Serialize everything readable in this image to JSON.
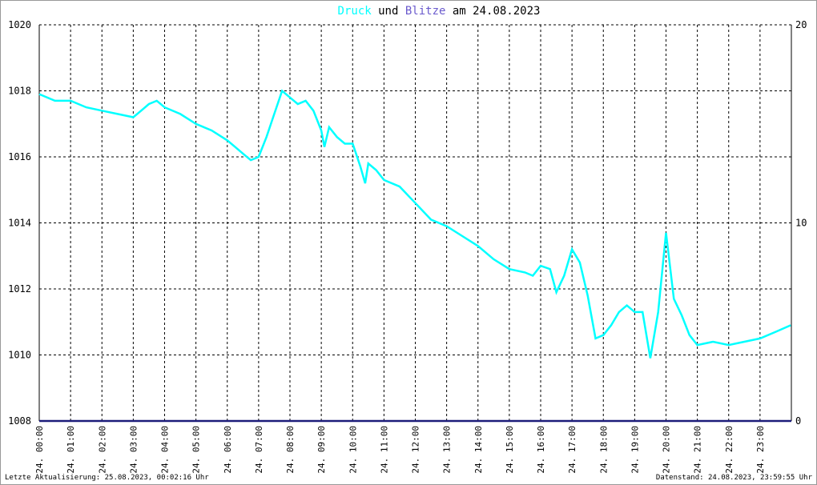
{
  "chart_data": {
    "type": "line",
    "title_connector": "und",
    "title_suffix": "am 24.08.2023",
    "footer_left": "Letzte Aktualisierung: 25.08.2023, 00:02:16 Uhr",
    "footer_right": "Datenstand: 24.08.2023, 23:59:55 Uhr",
    "xlim": [
      0,
      24
    ],
    "xticks": [
      {
        "value": 0,
        "label": "24. 00:00"
      },
      {
        "value": 1,
        "label": "24. 01:00"
      },
      {
        "value": 2,
        "label": "24. 02:00"
      },
      {
        "value": 3,
        "label": "24. 03:00"
      },
      {
        "value": 4,
        "label": "24. 04:00"
      },
      {
        "value": 5,
        "label": "24. 05:00"
      },
      {
        "value": 6,
        "label": "24. 06:00"
      },
      {
        "value": 7,
        "label": "24. 07:00"
      },
      {
        "value": 8,
        "label": "24. 08:00"
      },
      {
        "value": 9,
        "label": "24. 09:00"
      },
      {
        "value": 10,
        "label": "24. 10:00"
      },
      {
        "value": 11,
        "label": "24. 11:00"
      },
      {
        "value": 12,
        "label": "24. 12:00"
      },
      {
        "value": 13,
        "label": "24. 13:00"
      },
      {
        "value": 14,
        "label": "24. 14:00"
      },
      {
        "value": 15,
        "label": "24. 15:00"
      },
      {
        "value": 16,
        "label": "24. 16:00"
      },
      {
        "value": 17,
        "label": "24. 17:00"
      },
      {
        "value": 18,
        "label": "24. 18:00"
      },
      {
        "value": 19,
        "label": "24. 19:00"
      },
      {
        "value": 20,
        "label": "24. 20:00"
      },
      {
        "value": 21,
        "label": "24. 21:00"
      },
      {
        "value": 22,
        "label": "24. 22:00"
      },
      {
        "value": 23,
        "label": "24. 23:00"
      }
    ],
    "ylim": [
      1008,
      1020
    ],
    "yticks": [
      1008,
      1010,
      1012,
      1014,
      1016,
      1018,
      1020
    ],
    "y2lim": [
      0,
      20
    ],
    "y2ticks": [
      0,
      10,
      20
    ],
    "grid": true,
    "series": [
      {
        "name": "Druck",
        "color": "#00ffff",
        "x": [
          0,
          0.5,
          1,
          1.5,
          2,
          2.5,
          3,
          3.25,
          3.5,
          3.75,
          4,
          4.5,
          5,
          5.5,
          6,
          6.25,
          6.5,
          6.75,
          7,
          7.25,
          7.5,
          7.75,
          8,
          8.25,
          8.5,
          8.75,
          9,
          9.1,
          9.25,
          9.5,
          9.75,
          10,
          10.25,
          10.4,
          10.5,
          10.75,
          11,
          11.5,
          12,
          12.5,
          13,
          13.5,
          14,
          14.5,
          15,
          15.5,
          15.75,
          16,
          16.3,
          16.5,
          16.75,
          17,
          17.25,
          17.5,
          17.75,
          18,
          18.25,
          18.5,
          18.75,
          19,
          19.25,
          19.5,
          19.75,
          20,
          20.25,
          20.5,
          20.75,
          21,
          21.5,
          22,
          22.5,
          23,
          23.5,
          23.98
        ],
        "values": [
          1017.9,
          1017.7,
          1017.7,
          1017.5,
          1017.4,
          1017.3,
          1017.2,
          1017.4,
          1017.6,
          1017.7,
          1017.5,
          1017.3,
          1017.0,
          1016.8,
          1016.5,
          1016.3,
          1016.1,
          1015.9,
          1016.0,
          1016.6,
          1017.3,
          1018.0,
          1017.8,
          1017.6,
          1017.7,
          1017.4,
          1016.8,
          1016.3,
          1016.9,
          1016.6,
          1016.4,
          1016.4,
          1015.7,
          1015.2,
          1015.8,
          1015.6,
          1015.3,
          1015.1,
          1014.6,
          1014.1,
          1013.9,
          1013.6,
          1013.3,
          1012.9,
          1012.6,
          1012.5,
          1012.4,
          1012.7,
          1012.6,
          1011.9,
          1012.4,
          1013.2,
          1012.8,
          1011.8,
          1010.5,
          1010.6,
          1010.9,
          1011.3,
          1011.5,
          1011.3,
          1011.3,
          1009.9,
          1011.3,
          1013.7,
          1011.7,
          1011.2,
          1010.6,
          1010.3,
          1010.4,
          1010.3,
          1010.4,
          1010.5,
          1010.7,
          1010.9
        ]
      },
      {
        "name": "Blitze",
        "color": "#1c1c7a",
        "title_color": "#6a5acd",
        "axis": "y2",
        "x": [
          0,
          24
        ],
        "values": [
          0,
          0
        ]
      }
    ]
  }
}
